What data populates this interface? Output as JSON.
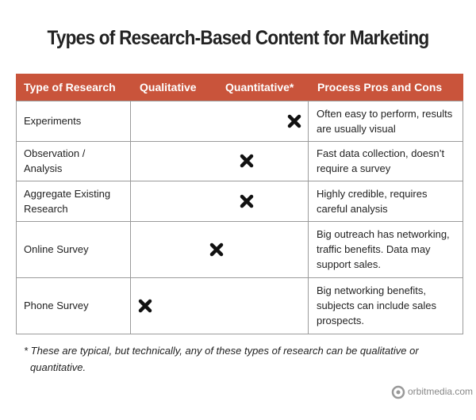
{
  "header": {
    "title": "Types of Research-Based Content for Marketing"
  },
  "table": {
    "columns": [
      "Type of Research",
      "Qualitative",
      "Quantitative*",
      "Process Pros and Cons"
    ],
    "rows": [
      {
        "type": "Experiments",
        "position": 92,
        "notes": "Often easy to perform, results are usually visual"
      },
      {
        "type": "Observation / Analysis",
        "position": 65,
        "notes": "Fast data collection, doesn’t require a survey"
      },
      {
        "type": "Aggregate Existing Research",
        "position": 65,
        "notes": "Highly credible, requires careful analysis"
      },
      {
        "type": "Online Survey",
        "position": 48,
        "notes": "Big outreach has networking, traffic benefits. Data may support sales."
      },
      {
        "type": "Phone Survey",
        "position": 8,
        "notes": "Big networking benefits, subjects can include sales prospects."
      }
    ]
  },
  "footnote": "* These are typical, but technically, any of these types of research can be qualitative or quantitative.",
  "footer": {
    "logo": "orbitmedia.com"
  }
}
